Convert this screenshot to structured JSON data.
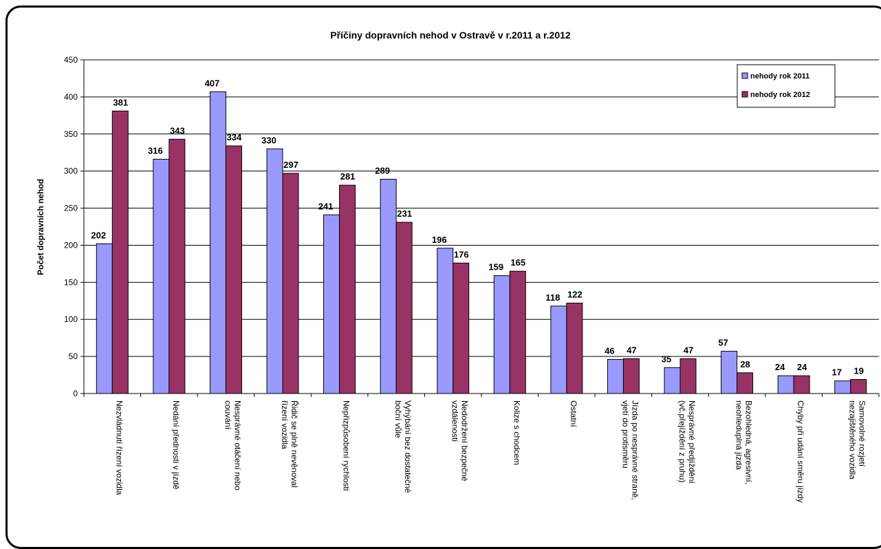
{
  "chart_data": {
    "type": "bar",
    "title": "Příčiny dopravních nehod v Ostravě  v r.2011 a r.2012",
    "xlabel": "",
    "ylabel": "Počet dopravních nehod",
    "ylim": [
      0,
      450
    ],
    "yticks": [
      0,
      50,
      100,
      150,
      200,
      250,
      300,
      350,
      400,
      450
    ],
    "grid": true,
    "legend_position": "top-right",
    "categories": [
      [
        "Nezvládnutí řízení vozidla"
      ],
      [
        "Nedání přednosti v jízdě"
      ],
      [
        "Nesprávné otáčení nebo",
        "couvání"
      ],
      [
        "Řidič se plně nevěnoval",
        "řízení vozidla"
      ],
      [
        "Nepřizpůsobení rychlosti"
      ],
      [
        "Vyhýbání bez dostatečné",
        "boční vůle"
      ],
      [
        "Nedodržení bezpečné",
        "vzdálenosti"
      ],
      [
        "Kolize s chodcem"
      ],
      [
        "Ostatní"
      ],
      [
        "Jízda po nesprávné straně,",
        "vjetí do protisměru"
      ],
      [
        "Nesprávné předjíždění",
        "(vč.přejíždění z pruhu)"
      ],
      [
        "Bezohledná, agresivní,",
        "neohleduplná jízda"
      ],
      [
        "Chyby při udání směru jízdy"
      ],
      [
        "Samovolné rozjetí",
        "nezajištěného vozidla"
      ]
    ],
    "series": [
      {
        "name": "nehody rok 2011",
        "color": "#9999ff",
        "values": [
          202,
          316,
          407,
          330,
          241,
          289,
          196,
          159,
          118,
          46,
          35,
          57,
          24,
          17
        ]
      },
      {
        "name": "nehody rok 2012",
        "color": "#993366",
        "values": [
          381,
          343,
          334,
          297,
          281,
          231,
          176,
          165,
          122,
          47,
          47,
          28,
          24,
          19
        ]
      }
    ]
  }
}
